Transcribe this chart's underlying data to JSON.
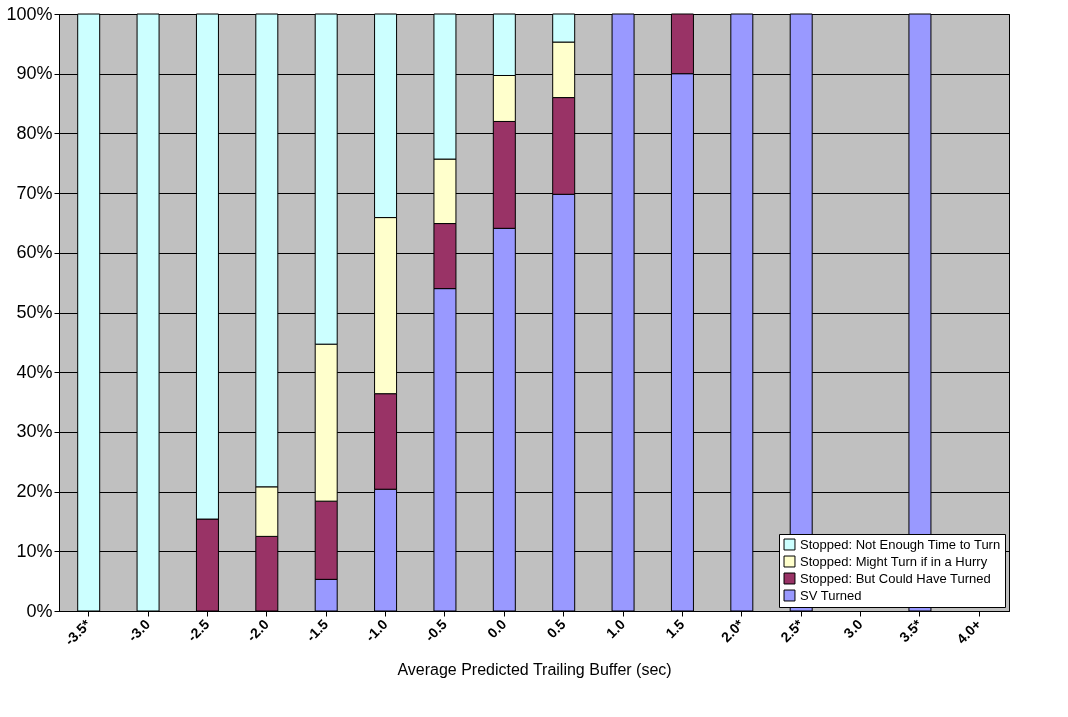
{
  "chart_data": {
    "type": "bar",
    "stacked": true,
    "xlabel": "Average Predicted Trailing Buffer (sec)",
    "categories": [
      "-3.5*",
      "-3.0",
      "-2.5",
      "-2.0",
      "-1.5",
      "-1.0",
      "-0.5",
      "0.0",
      "0.5",
      "1.0",
      "1.5",
      "2.0*",
      "2.5*",
      "3.0",
      "3.5*",
      "4.0+"
    ],
    "series": [
      {
        "name": "SV Turned",
        "color": "#9999ff",
        "values": [
          null,
          null,
          null,
          null,
          5.3,
          20.4,
          54,
          64.1,
          69.8,
          100,
          90,
          100,
          100,
          null,
          100,
          null
        ]
      },
      {
        "name": "Stopped: But Could Have Turned",
        "color": "#993366",
        "values": [
          null,
          null,
          15.4,
          12.5,
          13.1,
          16,
          10.9,
          17.9,
          16.2,
          null,
          10,
          null,
          null,
          null,
          null,
          null
        ]
      },
      {
        "name": "Stopped: Might Turn if in a Hurry",
        "color": "#ffffcc",
        "values": [
          null,
          null,
          null,
          8.3,
          26.3,
          29.5,
          10.8,
          7.7,
          9.3,
          null,
          null,
          null,
          null,
          null,
          null,
          null
        ]
      },
      {
        "name": "Stopped: Not Enough Time to Turn",
        "color": "#ccffff",
        "values": [
          100,
          100,
          84.6,
          79.2,
          55.3,
          34.1,
          24.3,
          10.3,
          4.7,
          null,
          null,
          null,
          null,
          null,
          null,
          null
        ]
      }
    ],
    "ylim": [
      0,
      100
    ],
    "yticks": [
      {
        "value": 0,
        "label": "0%"
      },
      {
        "value": 10,
        "label": "10%"
      },
      {
        "value": 20,
        "label": "20%"
      },
      {
        "value": 30,
        "label": "30%"
      },
      {
        "value": 40,
        "label": "40%"
      },
      {
        "value": 50,
        "label": "50%"
      },
      {
        "value": 60,
        "label": "60%"
      },
      {
        "value": 70,
        "label": "70%"
      },
      {
        "value": 80,
        "label": "80%"
      },
      {
        "value": 90,
        "label": "90%"
      },
      {
        "value": 100,
        "label": "100%"
      }
    ],
    "grid": "y",
    "legend": "bottom right"
  }
}
